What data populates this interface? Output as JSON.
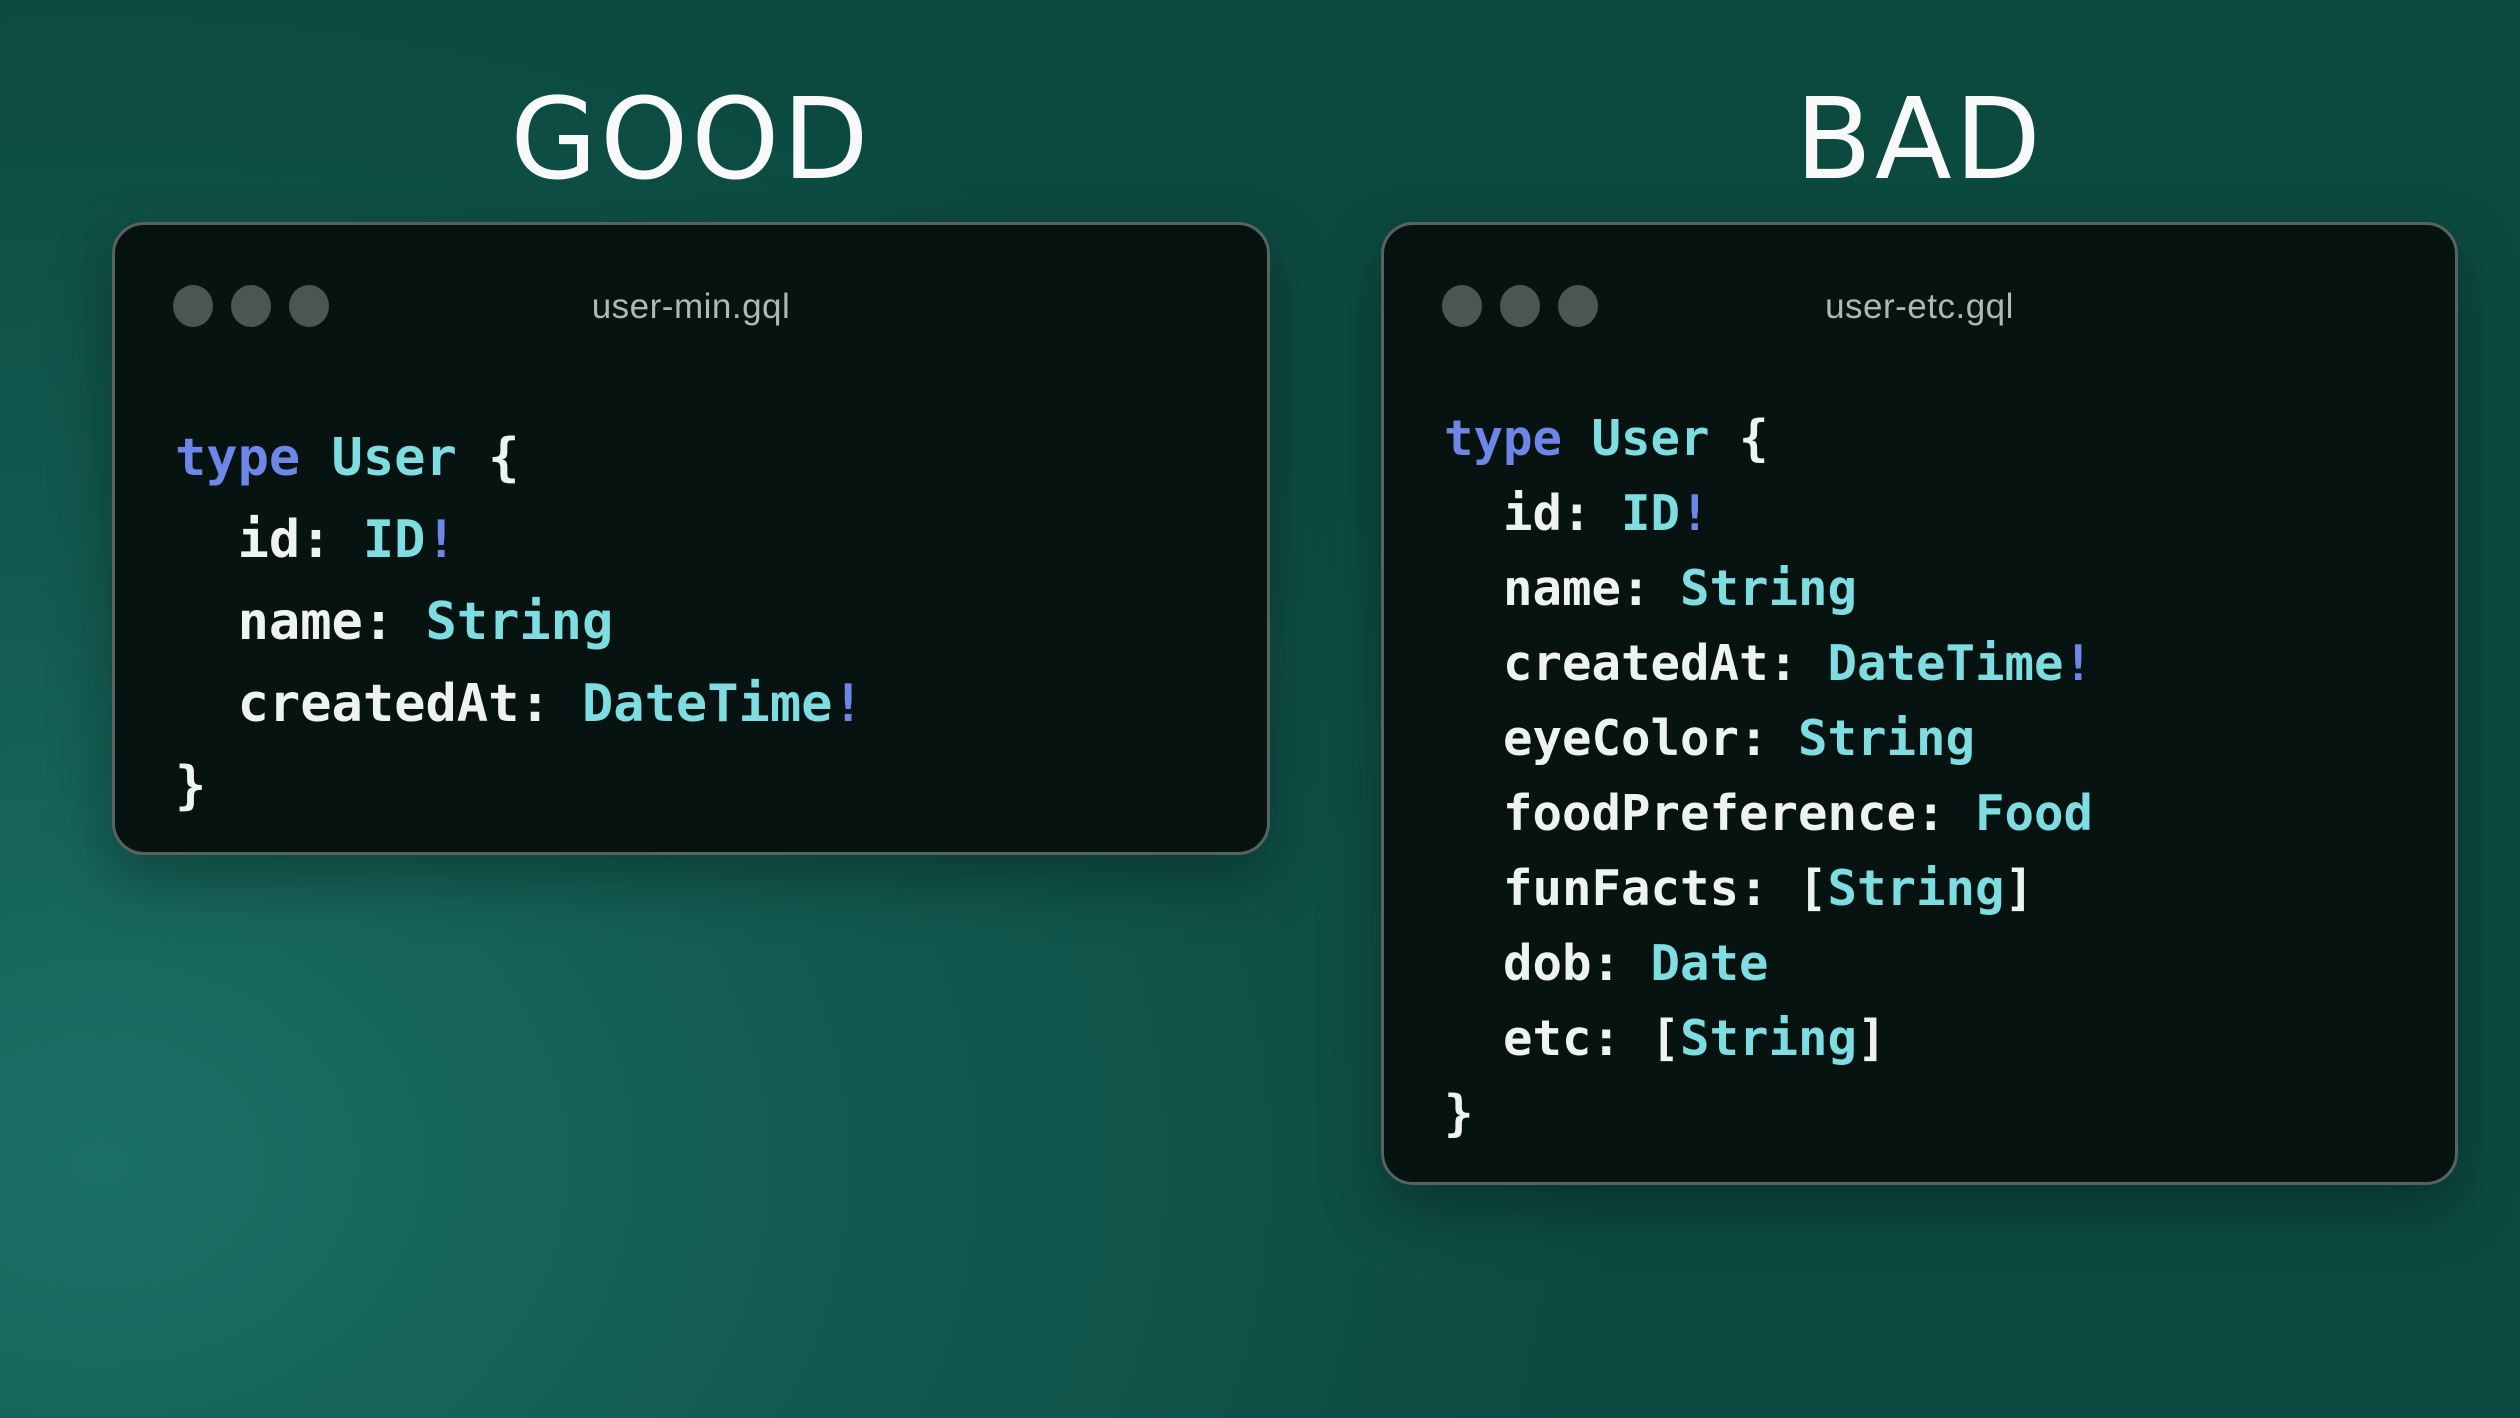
{
  "colors": {
    "bg-base": "#0c4a40",
    "bg-mid": "#12594f",
    "bg-glow": "#1b7065",
    "window-bg": "#061310",
    "window-border": "#58625f",
    "dot": "#4b5551",
    "title": "#b0b7b4",
    "heading": "#f8fafa",
    "keyword": "#6e86e8",
    "typename": "#7edde0",
    "plain": "#eef3f1"
  },
  "panels": [
    {
      "heading": "GOOD",
      "window_title": "user-min.gql",
      "code_lines": [
        {
          "tokens": [
            {
              "text": "type",
              "style": "keyword"
            },
            {
              "text": " ",
              "style": "plain"
            },
            {
              "text": "User",
              "style": "typename"
            },
            {
              "text": " {",
              "style": "plain"
            }
          ]
        },
        {
          "tokens": [
            {
              "text": "  id: ",
              "style": "plain"
            },
            {
              "text": "ID",
              "style": "typename"
            },
            {
              "text": "!",
              "style": "keyword"
            }
          ]
        },
        {
          "tokens": [
            {
              "text": "  name: ",
              "style": "plain"
            },
            {
              "text": "String",
              "style": "typename"
            }
          ]
        },
        {
          "tokens": [
            {
              "text": "  createdAt: ",
              "style": "plain"
            },
            {
              "text": "DateTime",
              "style": "typename"
            },
            {
              "text": "!",
              "style": "keyword"
            }
          ]
        },
        {
          "tokens": [
            {
              "text": "}",
              "style": "plain"
            }
          ]
        }
      ]
    },
    {
      "heading": "BAD",
      "window_title": "user-etc.gql",
      "code_lines": [
        {
          "tokens": [
            {
              "text": "type",
              "style": "keyword"
            },
            {
              "text": " ",
              "style": "plain"
            },
            {
              "text": "User",
              "style": "typename"
            },
            {
              "text": " {",
              "style": "plain"
            }
          ]
        },
        {
          "tokens": [
            {
              "text": "  id: ",
              "style": "plain"
            },
            {
              "text": "ID",
              "style": "typename"
            },
            {
              "text": "!",
              "style": "keyword"
            }
          ]
        },
        {
          "tokens": [
            {
              "text": "  name: ",
              "style": "plain"
            },
            {
              "text": "String",
              "style": "typename"
            }
          ]
        },
        {
          "tokens": [
            {
              "text": "  createdAt: ",
              "style": "plain"
            },
            {
              "text": "DateTime",
              "style": "typename"
            },
            {
              "text": "!",
              "style": "keyword"
            }
          ]
        },
        {
          "tokens": [
            {
              "text": "  eyeColor: ",
              "style": "plain"
            },
            {
              "text": "String",
              "style": "typename"
            }
          ]
        },
        {
          "tokens": [
            {
              "text": "  foodPreference: ",
              "style": "plain"
            },
            {
              "text": "Food",
              "style": "typename"
            }
          ]
        },
        {
          "tokens": [
            {
              "text": "  funFacts: [",
              "style": "plain"
            },
            {
              "text": "String",
              "style": "typename"
            },
            {
              "text": "]",
              "style": "plain"
            }
          ]
        },
        {
          "tokens": [
            {
              "text": "  dob: ",
              "style": "plain"
            },
            {
              "text": "Date",
              "style": "typename"
            }
          ]
        },
        {
          "tokens": [
            {
              "text": "  etc: [",
              "style": "plain"
            },
            {
              "text": "String",
              "style": "typename"
            },
            {
              "text": "]",
              "style": "plain"
            }
          ]
        },
        {
          "tokens": [
            {
              "text": "}",
              "style": "plain"
            }
          ]
        }
      ]
    }
  ]
}
